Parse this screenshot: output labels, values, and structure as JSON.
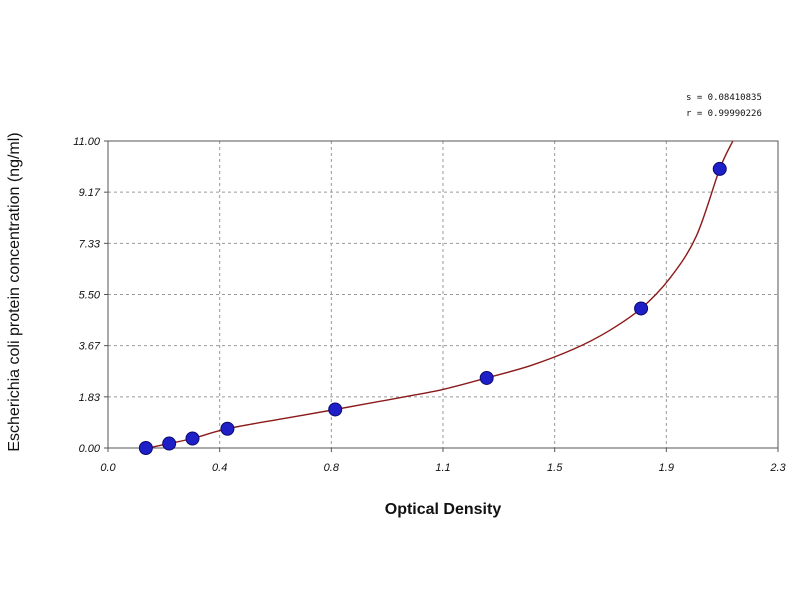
{
  "chart_data": {
    "type": "scatter",
    "title": "",
    "xlabel": "Optical Density",
    "ylabel": "Escherichia coli protein concentration (ng/ml)",
    "xlim": [
      0.0,
      2.3
    ],
    "ylim": [
      0.0,
      11.0
    ],
    "x_ticks": [
      "0.0",
      "0.4",
      "0.8",
      "1.1",
      "1.5",
      "1.9",
      "2.3"
    ],
    "y_ticks": [
      "0.00",
      "1.83",
      "3.67",
      "5.50",
      "7.33",
      "9.17",
      "11.00"
    ],
    "grid": true,
    "stats": {
      "s": "s = 0.08410835",
      "r": "r = 0.99990226"
    },
    "series": [
      {
        "type": "scatter",
        "points": [
          {
            "x": 0.13,
            "y": 0.0
          },
          {
            "x": 0.21,
            "y": 0.16
          },
          {
            "x": 0.29,
            "y": 0.34
          },
          {
            "x": 0.41,
            "y": 0.69
          },
          {
            "x": 0.78,
            "y": 1.38
          },
          {
            "x": 1.3,
            "y": 2.51
          },
          {
            "x": 1.83,
            "y": 5.0
          },
          {
            "x": 2.1,
            "y": 10.0
          }
        ]
      },
      {
        "type": "line",
        "curve": [
          {
            "x": 0.12,
            "y": -0.05
          },
          {
            "x": 0.2,
            "y": 0.14
          },
          {
            "x": 0.29,
            "y": 0.34
          },
          {
            "x": 0.41,
            "y": 0.69
          },
          {
            "x": 0.6,
            "y": 1.05
          },
          {
            "x": 0.78,
            "y": 1.38
          },
          {
            "x": 1.0,
            "y": 1.8
          },
          {
            "x": 1.15,
            "y": 2.1
          },
          {
            "x": 1.3,
            "y": 2.51
          },
          {
            "x": 1.45,
            "y": 2.95
          },
          {
            "x": 1.6,
            "y": 3.55
          },
          {
            "x": 1.72,
            "y": 4.2
          },
          {
            "x": 1.83,
            "y": 5.0
          },
          {
            "x": 1.93,
            "y": 6.1
          },
          {
            "x": 2.02,
            "y": 7.6
          },
          {
            "x": 2.1,
            "y": 10.0
          },
          {
            "x": 2.145,
            "y": 11.0
          }
        ]
      }
    ]
  }
}
